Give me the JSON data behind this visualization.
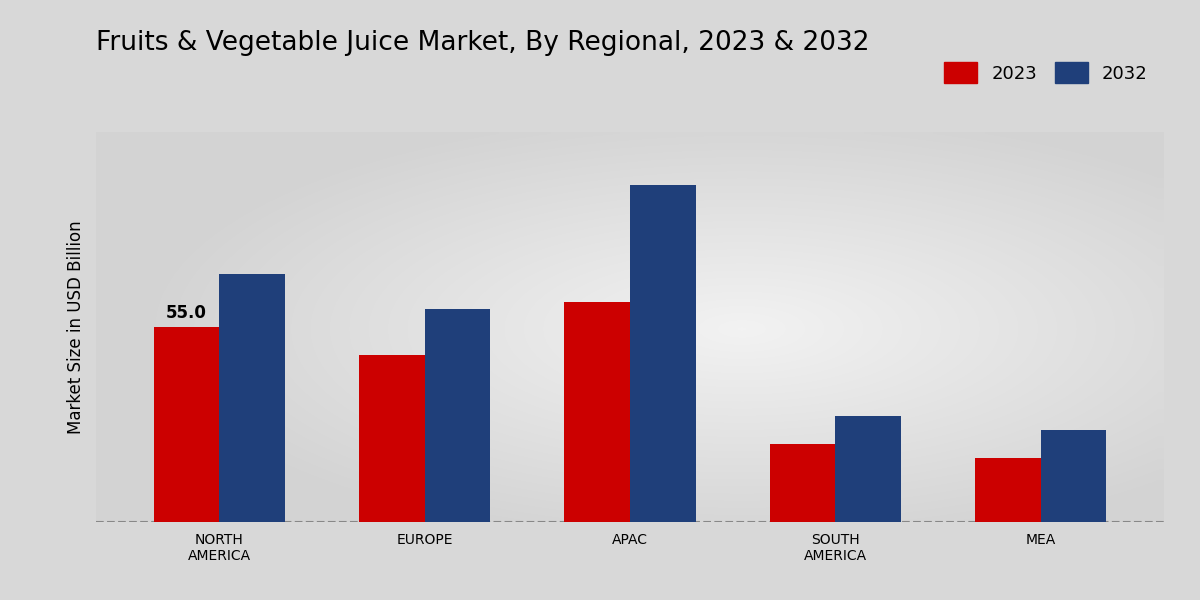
{
  "title": "Fruits & Vegetable Juice Market, By Regional, 2023 & 2032",
  "ylabel": "Market Size in USD Billion",
  "categories": [
    "NORTH\nAMERICA",
    "EUROPE",
    "APAC",
    "SOUTH\nAMERICA",
    "MEA"
  ],
  "values_2023": [
    55.0,
    47.0,
    62.0,
    22.0,
    18.0
  ],
  "values_2032": [
    70.0,
    60.0,
    95.0,
    30.0,
    26.0
  ],
  "color_2023": "#CC0000",
  "color_2032": "#1F3F7A",
  "annotation_text": "55.0",
  "annotation_bar": 0,
  "bar_width": 0.32,
  "ylim": [
    0,
    110
  ],
  "bg_color_edge": "#CBCBCB",
  "bg_color_center": "#F0F0F0",
  "legend_labels": [
    "2023",
    "2032"
  ],
  "title_fontsize": 19,
  "label_fontsize": 12,
  "tick_fontsize": 10,
  "annot_fontsize": 12
}
